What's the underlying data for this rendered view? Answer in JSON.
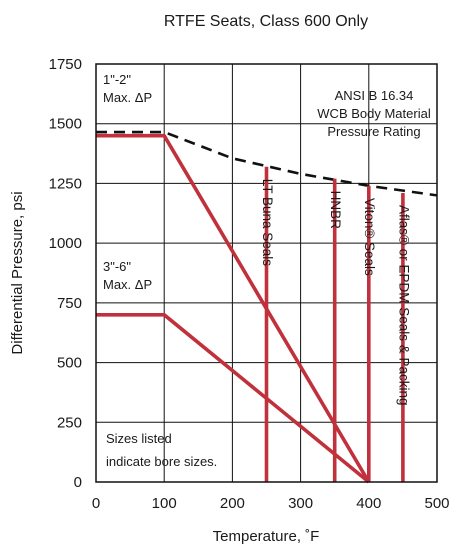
{
  "chart_data": {
    "type": "line",
    "title": "RTFE Seats, Class 600 Only",
    "xlabel": "Temperature, ˚F",
    "ylabel": "Differential Pressure, psi",
    "xlim": [
      0,
      500
    ],
    "ylim": [
      0,
      1750
    ],
    "xticks": [
      0,
      100,
      200,
      300,
      400,
      500
    ],
    "xtick_labels": [
      "0",
      "100",
      "200",
      "300",
      "400",
      "500"
    ],
    "yticks": [
      0,
      250,
      500,
      750,
      1000,
      1250,
      1500,
      1750
    ],
    "ytick_labels": [
      "0",
      "250",
      "500",
      "750",
      "1000",
      "1250",
      "1500",
      "1750"
    ],
    "grid": true,
    "colors": {
      "seat_curve": "#c0313c",
      "rating_curve": "#111111",
      "axes": "#111111"
    },
    "series": [
      {
        "key": "small_bore",
        "style": "solid",
        "x": [
          0,
          100,
          400
        ],
        "y": [
          1450,
          1450,
          0
        ]
      },
      {
        "key": "large_bore",
        "style": "solid",
        "x": [
          0,
          100,
          400
        ],
        "y": [
          700,
          700,
          0
        ]
      },
      {
        "key": "body_rating",
        "style": "dashed",
        "x": [
          0,
          100,
          200,
          300,
          400,
          500
        ],
        "y": [
          1465,
          1465,
          1355,
          1290,
          1240,
          1200
        ]
      }
    ],
    "seal_limits": [
      {
        "x": 250,
        "y_max": 1320,
        "label": "LT Buna Seals"
      },
      {
        "x": 350,
        "y_max": 1270,
        "label": "HNBR"
      },
      {
        "x": 400,
        "y_max": 1240,
        "label": "Viton® Seals"
      },
      {
        "x": 450,
        "y_max": 1210,
        "label": "Aflas® or EPDM Seals & Packing"
      }
    ],
    "annotations": {
      "small_bore_line1": "1\"-2\"",
      "small_bore_line2": "Max. ΔP",
      "large_bore_line1": "3\"-6\"",
      "large_bore_line2": "Max. ΔP",
      "rating_line1": "ANSI B 16.34",
      "rating_line2": "WCB Body Material",
      "rating_line3": "Pressure Rating",
      "note_line1": "Sizes listed",
      "note_line2": "indicate bore sizes."
    }
  }
}
